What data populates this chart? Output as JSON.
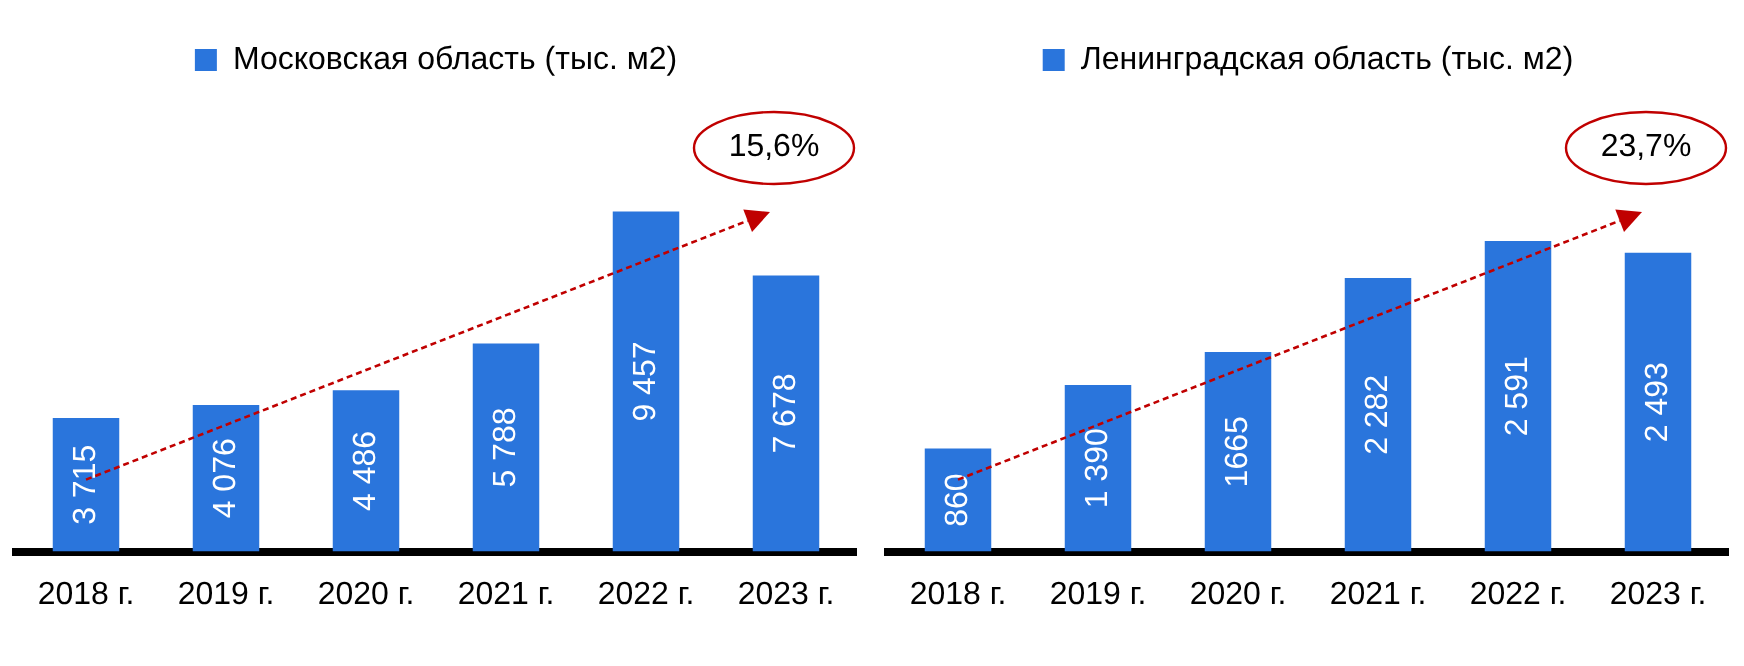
{
  "chart_data": [
    {
      "type": "bar",
      "categories": [
        "2018 г.",
        "2019 г.",
        "2020 г.",
        "2021 г.",
        "2022 г.",
        "2023 г."
      ],
      "legend": "top",
      "grid": false,
      "annotations": [
        "15,6%"
      ],
      "series": [
        {
          "name": "Московская область (тыс. м2)",
          "color": "#2a75dc",
          "values": [
            3715,
            4076,
            4486,
            5788,
            9457,
            7678
          ],
          "value_labels": [
            "3 715",
            "4 076",
            "4 486",
            "5 788",
            "9 457",
            "7 678"
          ]
        }
      ]
    },
    {
      "type": "bar",
      "categories": [
        "2018 г.",
        "2019 г.",
        "2020 г.",
        "2021 г.",
        "2022 г.",
        "2023 г."
      ],
      "legend": "top",
      "grid": false,
      "annotations": [
        "23,7%"
      ],
      "series": [
        {
          "name": "Ленинградская область (тыс. м2)",
          "color": "#2a75dc",
          "values": [
            860,
            1390,
            1665,
            2282,
            2591,
            2493
          ],
          "value_labels": [
            "860",
            "1 390",
            "1665",
            "2 282",
            "2 591",
            "2 493"
          ]
        }
      ]
    }
  ]
}
